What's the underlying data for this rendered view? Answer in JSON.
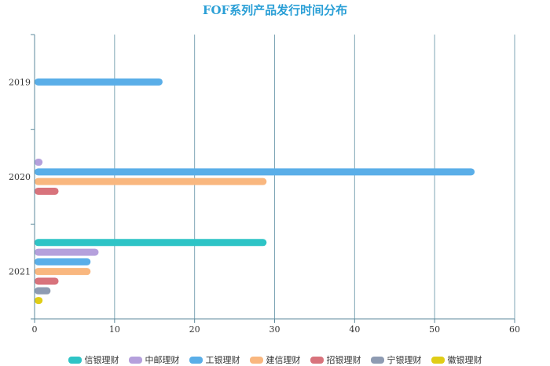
{
  "chart_data": {
    "type": "bar",
    "orientation": "horizontal",
    "title": "FOF系列产品发行时间分布",
    "categories": [
      "2019",
      "2020",
      "2021"
    ],
    "xlim": [
      0,
      60
    ],
    "x_ticks": [
      "0",
      "10",
      "20",
      "30",
      "40",
      "50",
      "60"
    ],
    "grid": true,
    "legend_position": "bottom",
    "series": [
      {
        "name": "信银理财",
        "color": "#2ec4c6",
        "values": [
          null,
          null,
          29
        ]
      },
      {
        "name": "中邮理财",
        "color": "#b5a0dc",
        "values": [
          null,
          1,
          8
        ]
      },
      {
        "name": "工银理财",
        "color": "#5aaee8",
        "values": [
          16,
          55,
          7
        ]
      },
      {
        "name": "建信理财",
        "color": "#f9b77f",
        "values": [
          null,
          29,
          7
        ]
      },
      {
        "name": "招银理财",
        "color": "#d8737c",
        "values": [
          null,
          3,
          3
        ]
      },
      {
        "name": "宁银理财",
        "color": "#8e9bb2",
        "values": [
          null,
          null,
          2
        ]
      },
      {
        "name": "徽银理财",
        "color": "#e0cd16",
        "values": [
          null,
          null,
          1
        ]
      }
    ]
  }
}
